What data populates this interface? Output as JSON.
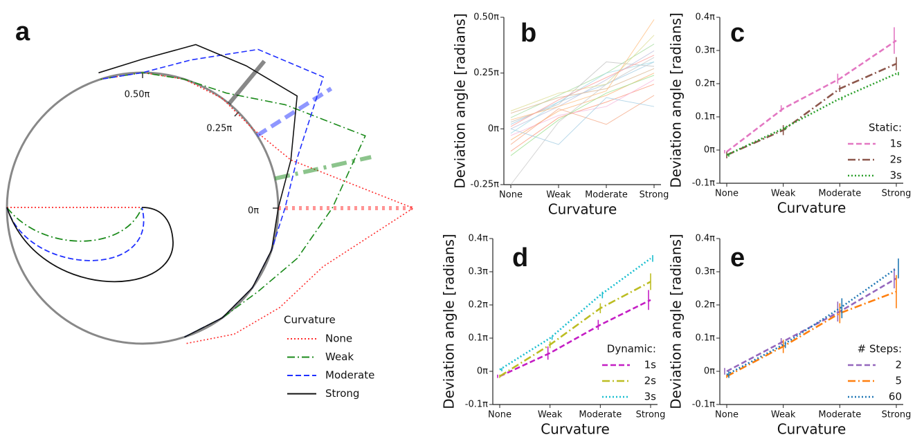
{
  "chart_data": [
    {
      "type": "polar",
      "panel_label": "a",
      "angle_ticks": [
        {
          "value": 0,
          "label": "0π"
        },
        {
          "value": 0.25,
          "label": "0.25π"
        },
        {
          "value": 0.5,
          "label": "0.50π"
        }
      ],
      "angles": [
        -0.4,
        -0.3,
        -0.2,
        -0.1,
        0,
        0.1,
        0.2,
        0.3,
        0.4,
        0.5,
        0.6
      ],
      "legend_title": "Curvature",
      "series": [
        {
          "name": "None",
          "color": "#ff2a2a",
          "linestyle": "dotted",
          "mean": 0,
          "values": [
            0.05,
            0.15,
            0.25,
            0.4,
            1.0,
            0.15,
            0,
            0,
            0,
            0,
            0
          ]
        },
        {
          "name": "Weak",
          "color": "#1a8a1a",
          "linestyle": "dashdot",
          "mean": 0.07,
          "values": [
            0,
            0,
            0.05,
            0.2,
            0.4,
            0.73,
            0.3,
            0.05,
            0,
            0,
            0
          ]
        },
        {
          "name": "Moderate",
          "color": "#1f2fff",
          "linestyle": "dashed",
          "mean": 0.18,
          "values": [
            0,
            0,
            0,
            0,
            0.05,
            0.2,
            0.65,
            0.45,
            0.15,
            0,
            0
          ]
        },
        {
          "name": "Strong",
          "color": "#111111",
          "linestyle": "solid",
          "mean": 0.28,
          "values": [
            0,
            0,
            0,
            0,
            0,
            0.15,
            0.41,
            0.3,
            0.27,
            0.1,
            0.05
          ]
        }
      ]
    },
    {
      "type": "line",
      "panel_label": "b",
      "xlabel": "Curvature",
      "ylabel": "Deviation angle [radians]",
      "categories": [
        "None",
        "Weak",
        "Moderate",
        "Strong"
      ],
      "ylim": [
        -0.25,
        0.5
      ],
      "yticks": [
        {
          "value": -0.25,
          "label": "-0.25π"
        },
        {
          "value": 0,
          "label": "0π"
        },
        {
          "value": 0.25,
          "label": "0.25π"
        },
        {
          "value": 0.5,
          "label": "0.50π"
        }
      ],
      "series": [
        {
          "color": "#9ecae1",
          "linestyle": "solid",
          "values": [
            0.02,
            0.12,
            0.2,
            0.3
          ]
        },
        {
          "color": "#fdae6b",
          "linestyle": "solid",
          "values": [
            -0.05,
            0.08,
            0.15,
            0.25
          ]
        },
        {
          "color": "#a1d99b",
          "linestyle": "solid",
          "values": [
            0.05,
            0.15,
            0.25,
            0.38
          ]
        },
        {
          "color": "#fc9272",
          "linestyle": "solid",
          "values": [
            -0.1,
            0.05,
            0.12,
            0.2
          ]
        },
        {
          "color": "#bcbddc",
          "linestyle": "solid",
          "values": [
            0.0,
            0.1,
            0.22,
            0.35
          ]
        },
        {
          "color": "#d9b38c",
          "linestyle": "solid",
          "values": [
            0.07,
            0.14,
            0.18,
            0.27
          ]
        },
        {
          "color": "#f5b3d9",
          "linestyle": "solid",
          "values": [
            -0.03,
            0.06,
            0.1,
            0.22
          ]
        },
        {
          "color": "#bdbdbd",
          "linestyle": "solid",
          "values": [
            0.03,
            0.11,
            0.3,
            0.28
          ]
        },
        {
          "color": "#c7c7c7",
          "linestyle": "solid",
          "values": [
            -0.25,
            0.03,
            0.2,
            0.32
          ]
        },
        {
          "color": "#f4a582",
          "linestyle": "solid",
          "values": [
            -0.07,
            0.09,
            0.02,
            0.15
          ]
        },
        {
          "color": "#dbdb8d",
          "linestyle": "solid",
          "values": [
            0.08,
            0.16,
            0.2,
            0.42
          ]
        },
        {
          "color": "#9ecae1",
          "linestyle": "solid",
          "values": [
            0.0,
            -0.07,
            0.14,
            0.1
          ]
        },
        {
          "color": "#9edae5",
          "linestyle": "solid",
          "values": [
            -0.02,
            0.12,
            0.25,
            0.3
          ]
        },
        {
          "color": "#ffbb78",
          "linestyle": "solid",
          "values": [
            0.04,
            0.1,
            0.17,
            0.49
          ]
        },
        {
          "color": "#98df8a",
          "linestyle": "solid",
          "values": [
            -0.12,
            0.04,
            0.16,
            0.24
          ]
        },
        {
          "color": "#ff9896",
          "linestyle": "solid",
          "values": [
            0.01,
            0.13,
            0.23,
            0.33
          ]
        }
      ]
    },
    {
      "type": "line",
      "panel_label": "c",
      "xlabel": "Curvature",
      "ylabel": "Deviation angle [radians]",
      "categories": [
        "None",
        "Weak",
        "Moderate",
        "Strong"
      ],
      "ylim": [
        -0.1,
        0.4
      ],
      "yticks": [
        {
          "value": -0.1,
          "label": "-0.1π"
        },
        {
          "value": 0,
          "label": "0π"
        },
        {
          "value": 0.1,
          "label": "0.1π"
        },
        {
          "value": 0.2,
          "label": "0.2π"
        },
        {
          "value": 0.3,
          "label": "0.3π"
        },
        {
          "value": 0.4,
          "label": "0.4π"
        }
      ],
      "legend_title": "Static:",
      "legend_loc": "lower right",
      "series": [
        {
          "name": "1s",
          "color": "#e377c2",
          "linestyle": "dashed",
          "values": [
            -0.005,
            0.125,
            0.215,
            0.33
          ],
          "errors": [
            0.005,
            0.01,
            0.015,
            0.04
          ]
        },
        {
          "name": "2s",
          "color": "#8c564b",
          "linestyle": "dashdot",
          "values": [
            -0.015,
            0.06,
            0.185,
            0.26
          ],
          "errors": [
            0.01,
            0.015,
            0.01,
            0.02
          ]
        },
        {
          "name": "3s",
          "color": "#2ca02c",
          "linestyle": "dotted",
          "values": [
            -0.015,
            0.065,
            0.155,
            0.23
          ],
          "errors": [
            0.005,
            0.005,
            0.005,
            0.005
          ]
        }
      ]
    },
    {
      "type": "line",
      "panel_label": "d",
      "xlabel": "Curvature",
      "ylabel": "Deviation angle [radians]",
      "categories": [
        "None",
        "Weak",
        "Moderate",
        "Strong"
      ],
      "ylim": [
        -0.1,
        0.4
      ],
      "yticks": [
        {
          "value": -0.1,
          "label": "-0.1π"
        },
        {
          "value": 0,
          "label": "0π"
        },
        {
          "value": 0.1,
          "label": "0.1π"
        },
        {
          "value": 0.2,
          "label": "0.2π"
        },
        {
          "value": 0.3,
          "label": "0.3π"
        },
        {
          "value": 0.4,
          "label": "0.4π"
        }
      ],
      "legend_title": "Dynamic:",
      "legend_loc": "lower right",
      "series": [
        {
          "name": "1s",
          "color": "#c41ec4",
          "linestyle": "dashed",
          "values": [
            -0.015,
            0.055,
            0.14,
            0.215
          ],
          "errors": [
            0.005,
            0.02,
            0.015,
            0.03
          ]
        },
        {
          "name": "2s",
          "color": "#bcbd22",
          "linestyle": "dashdot",
          "values": [
            -0.015,
            0.08,
            0.19,
            0.27
          ],
          "errors": [
            0.005,
            0.01,
            0.015,
            0.025
          ]
        },
        {
          "name": "3s",
          "color": "#17becf",
          "linestyle": "dotted",
          "values": [
            0.005,
            0.1,
            0.23,
            0.34
          ],
          "errors": [
            0.005,
            0.005,
            0.01,
            0.01
          ]
        }
      ]
    },
    {
      "type": "line",
      "panel_label": "e",
      "xlabel": "Curvature",
      "ylabel": "Deviation angle [radians]",
      "categories": [
        "None",
        "Weak",
        "Moderate",
        "Strong"
      ],
      "ylim": [
        -0.1,
        0.4
      ],
      "yticks": [
        {
          "value": -0.1,
          "label": "-0.1π"
        },
        {
          "value": 0,
          "label": "0π"
        },
        {
          "value": 0.1,
          "label": "0.1π"
        },
        {
          "value": 0.2,
          "label": "0.2π"
        },
        {
          "value": 0.3,
          "label": "0.3π"
        },
        {
          "value": 0.4,
          "label": "0.4π"
        }
      ],
      "legend_title": "# Steps:",
      "legend_loc": "lower right",
      "series": [
        {
          "name": "2",
          "color": "#9467bd",
          "linestyle": "dashed",
          "values": [
            0.0,
            0.09,
            0.18,
            0.28
          ],
          "errors": [
            0.01,
            0.01,
            0.03,
            0.03
          ]
        },
        {
          "name": "5",
          "color": "#ff7f0e",
          "linestyle": "dashdot",
          "values": [
            -0.015,
            0.075,
            0.175,
            0.24
          ],
          "errors": [
            0.005,
            0.02,
            0.03,
            0.05
          ]
        },
        {
          "name": "60",
          "color": "#1f77b4",
          "linestyle": "dotted",
          "values": [
            -0.01,
            0.08,
            0.19,
            0.31
          ],
          "errors": [
            0.01,
            0.01,
            0.03,
            0.03
          ]
        }
      ]
    }
  ]
}
